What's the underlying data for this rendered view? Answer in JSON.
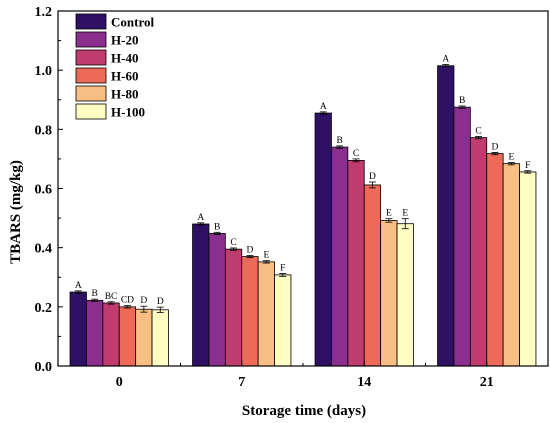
{
  "chart_data": {
    "type": "bar",
    "xlabel": "Storage time (days)",
    "ylabel": "TBARS (mg/kg)",
    "ylim": [
      0,
      1.2
    ],
    "yticks": [
      "0.0",
      "0.2",
      "0.4",
      "0.6",
      "0.8",
      "1.0",
      "1.2"
    ],
    "categories": [
      "0",
      "7",
      "14",
      "21"
    ],
    "legend_position": "top-left",
    "series": [
      {
        "name": "Control",
        "color": "#2E1065",
        "values": [
          0.25,
          0.48,
          0.855,
          1.015
        ],
        "errors": [
          0.004,
          0.004,
          0.004,
          0.004
        ],
        "labels": [
          "A",
          "A",
          "A",
          "A"
        ]
      },
      {
        "name": "H-20",
        "color": "#8B2F8F",
        "values": [
          0.222,
          0.448,
          0.74,
          0.875
        ],
        "errors": [
          0.004,
          0.004,
          0.004,
          0.004
        ],
        "labels": [
          "B",
          "B",
          "B",
          "B"
        ]
      },
      {
        "name": "H-40",
        "color": "#C03B6E",
        "values": [
          0.213,
          0.395,
          0.695,
          0.772
        ],
        "errors": [
          0.004,
          0.004,
          0.005,
          0.004
        ],
        "labels": [
          "BC",
          "C",
          "C",
          "C"
        ]
      },
      {
        "name": "H-60",
        "color": "#EE6A58",
        "values": [
          0.2,
          0.37,
          0.612,
          0.718
        ],
        "errors": [
          0.004,
          0.004,
          0.01,
          0.004
        ],
        "labels": [
          "CD",
          "D",
          "D",
          "D"
        ]
      },
      {
        "name": "H-80",
        "color": "#F9BE83",
        "values": [
          0.192,
          0.352,
          0.492,
          0.684
        ],
        "errors": [
          0.01,
          0.004,
          0.006,
          0.004
        ],
        "labels": [
          "D",
          "E",
          "E",
          "E"
        ]
      },
      {
        "name": "H-100",
        "color": "#FDFDC4",
        "values": [
          0.19,
          0.308,
          0.481,
          0.656
        ],
        "errors": [
          0.009,
          0.005,
          0.017,
          0.004
        ],
        "labels": [
          "D",
          "F",
          "E",
          "F"
        ]
      }
    ]
  }
}
